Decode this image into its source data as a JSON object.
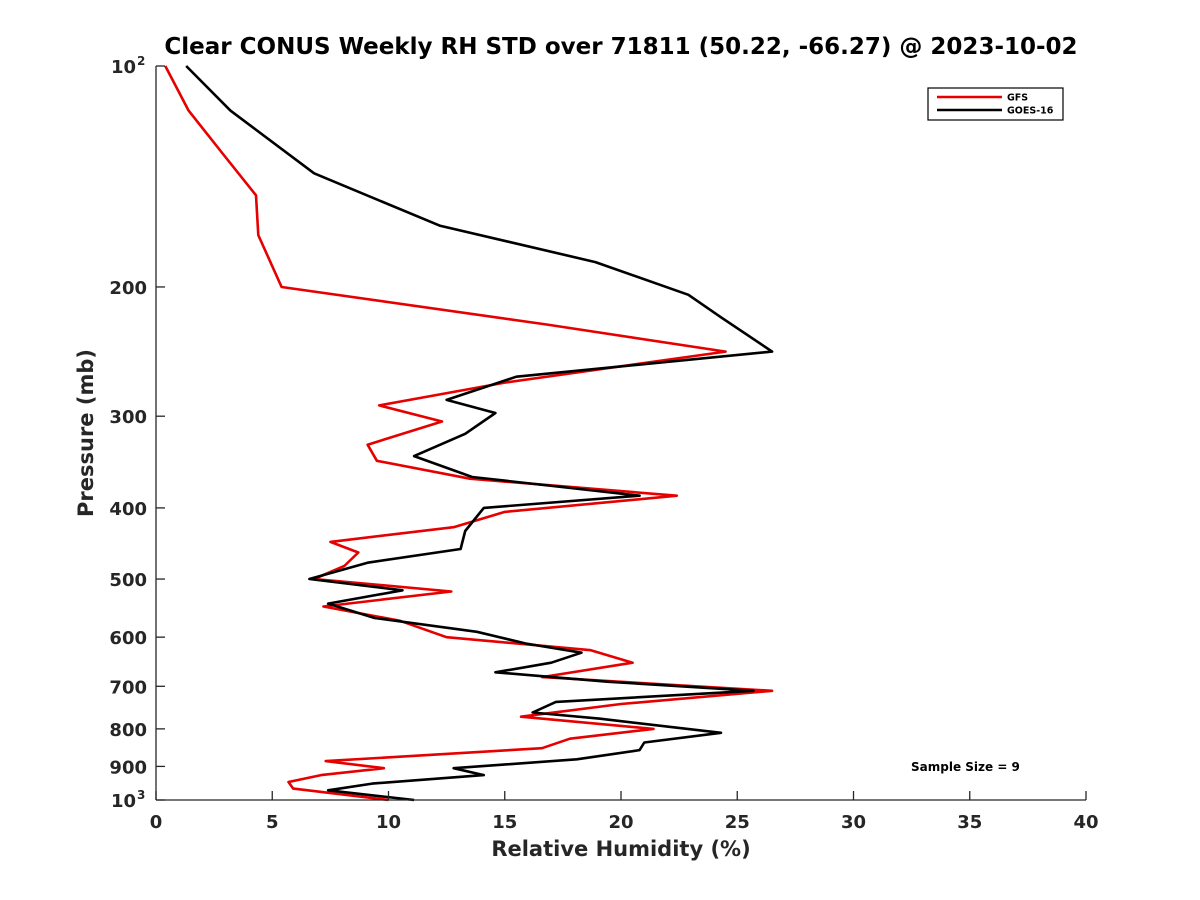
{
  "chart_data": {
    "type": "line",
    "title": "Clear CONUS Weekly RH STD over 71811 (50.22, -66.27) @ 2023-10-02",
    "xlabel": "Relative Humidity (%)",
    "ylabel": "Pressure (mb)",
    "xlim": [
      0,
      40
    ],
    "ylim": [
      100,
      1000
    ],
    "y_scale": "log",
    "y_reversed": true,
    "x_ticks": [
      0,
      5,
      10,
      15,
      20,
      25,
      30,
      35,
      40
    ],
    "x_tick_labels": [
      "0",
      "5",
      "10",
      "15",
      "20",
      "25",
      "30",
      "35",
      "40"
    ],
    "y_ticks": [
      {
        "value": 100,
        "base": "10",
        "exp": "2"
      },
      {
        "value": 200,
        "base": "200",
        "exp": ""
      },
      {
        "value": 300,
        "base": "300",
        "exp": ""
      },
      {
        "value": 400,
        "base": "400",
        "exp": ""
      },
      {
        "value": 500,
        "base": "500",
        "exp": ""
      },
      {
        "value": 600,
        "base": "600",
        "exp": ""
      },
      {
        "value": 700,
        "base": "700",
        "exp": ""
      },
      {
        "value": 800,
        "base": "800",
        "exp": ""
      },
      {
        "value": 900,
        "base": "900",
        "exp": ""
      },
      {
        "value": 1000,
        "base": "10",
        "exp": "3"
      }
    ],
    "legend_position": "top-right",
    "annotation": "Sample Size = 9",
    "grid": false,
    "series": [
      {
        "name": "GFS",
        "color": "#e60000",
        "points": [
          [
            0.4,
            100
          ],
          [
            1.4,
            115
          ],
          [
            2.9,
            132
          ],
          [
            4.3,
            150
          ],
          [
            4.4,
            170
          ],
          [
            5.4,
            200
          ],
          [
            16.8,
            225
          ],
          [
            24.5,
            245
          ],
          [
            15.0,
            270
          ],
          [
            9.6,
            290
          ],
          [
            12.3,
            305
          ],
          [
            9.1,
            328
          ],
          [
            9.5,
            345
          ],
          [
            13.5,
            365
          ],
          [
            22.4,
            385
          ],
          [
            15.0,
            405
          ],
          [
            12.8,
            425
          ],
          [
            7.5,
            445
          ],
          [
            8.7,
            460
          ],
          [
            8.1,
            480
          ],
          [
            6.8,
            500
          ],
          [
            12.7,
            520
          ],
          [
            7.2,
            545
          ],
          [
            10.5,
            570
          ],
          [
            12.5,
            600
          ],
          [
            18.7,
            625
          ],
          [
            20.5,
            650
          ],
          [
            16.6,
            680
          ],
          [
            26.5,
            710
          ],
          [
            20.0,
            740
          ],
          [
            15.7,
            770
          ],
          [
            21.4,
            800
          ],
          [
            17.8,
            825
          ],
          [
            16.6,
            850
          ],
          [
            7.3,
            885
          ],
          [
            9.8,
            905
          ],
          [
            7.1,
            925
          ],
          [
            5.7,
            945
          ],
          [
            5.9,
            965
          ],
          [
            10.0,
            1000
          ]
        ]
      },
      {
        "name": "GOES-16",
        "color": "#000000",
        "points": [
          [
            1.3,
            100
          ],
          [
            3.2,
            115
          ],
          [
            6.8,
            140
          ],
          [
            12.2,
            165
          ],
          [
            18.9,
            185
          ],
          [
            22.9,
            205
          ],
          [
            24.3,
            220
          ],
          [
            26.5,
            245
          ],
          [
            15.5,
            265
          ],
          [
            12.5,
            285
          ],
          [
            14.6,
            297
          ],
          [
            13.3,
            317
          ],
          [
            11.1,
            340
          ],
          [
            13.6,
            363
          ],
          [
            20.8,
            385
          ],
          [
            14.1,
            400
          ],
          [
            13.3,
            430
          ],
          [
            13.1,
            455
          ],
          [
            9.1,
            475
          ],
          [
            6.6,
            500
          ],
          [
            10.6,
            518
          ],
          [
            7.4,
            540
          ],
          [
            9.4,
            565
          ],
          [
            13.8,
            590
          ],
          [
            15.9,
            612
          ],
          [
            18.3,
            630
          ],
          [
            17.0,
            650
          ],
          [
            14.6,
            670
          ],
          [
            19.4,
            690
          ],
          [
            25.7,
            710
          ],
          [
            17.2,
            735
          ],
          [
            16.2,
            760
          ],
          [
            19.1,
            775
          ],
          [
            24.3,
            810
          ],
          [
            21.0,
            835
          ],
          [
            20.8,
            855
          ],
          [
            18.1,
            880
          ],
          [
            12.8,
            905
          ],
          [
            14.1,
            925
          ],
          [
            9.3,
            950
          ],
          [
            7.4,
            970
          ],
          [
            11.1,
            1000
          ]
        ]
      }
    ]
  }
}
